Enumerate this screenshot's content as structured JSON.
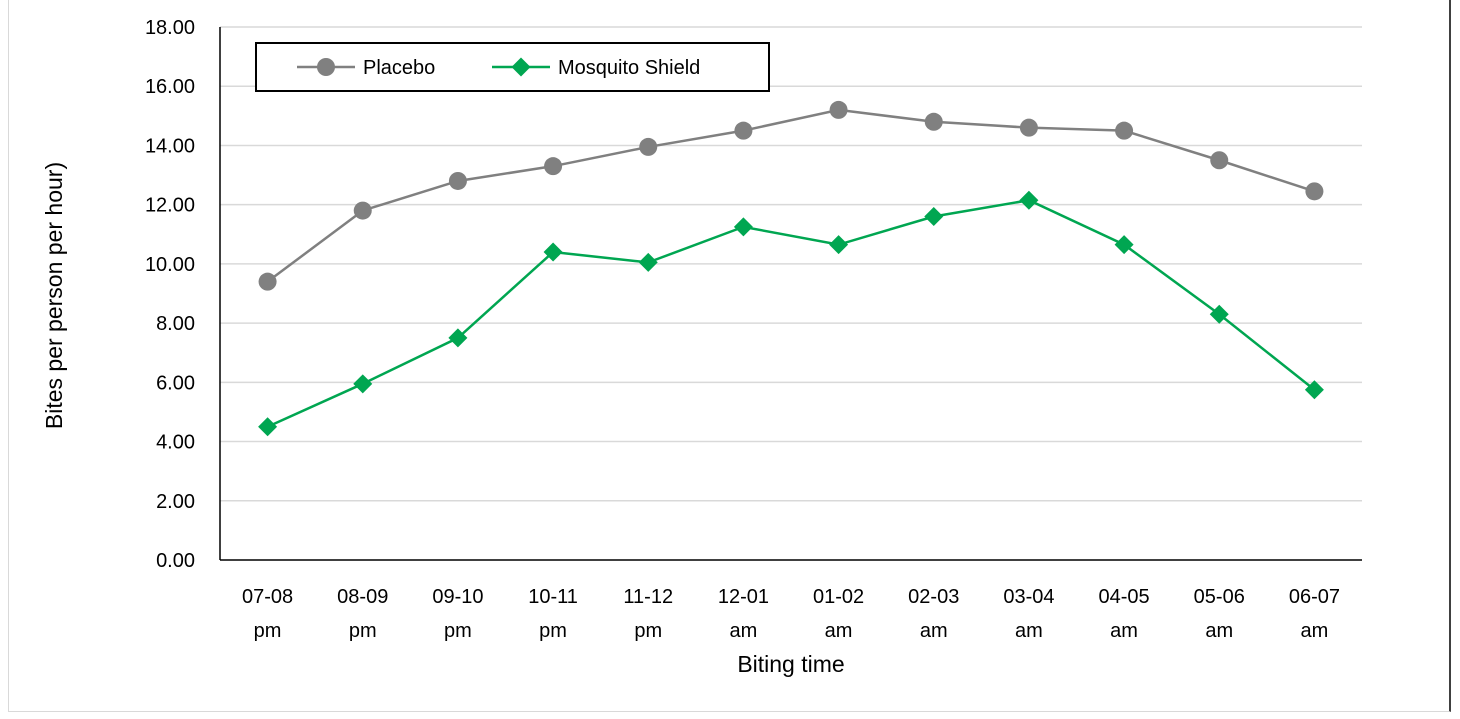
{
  "chart_data": {
    "type": "line",
    "categories": [
      [
        "07-08",
        "pm"
      ],
      [
        "08-09",
        "pm"
      ],
      [
        "09-10",
        "pm"
      ],
      [
        "10-11",
        "pm"
      ],
      [
        "11-12",
        "pm"
      ],
      [
        "12-01",
        "am"
      ],
      [
        "01-02",
        "am"
      ],
      [
        "02-03",
        "am"
      ],
      [
        "03-04",
        "am"
      ],
      [
        "04-05",
        "am"
      ],
      [
        "05-06",
        "am"
      ],
      [
        "06-07",
        "am"
      ]
    ],
    "series": [
      {
        "name": "Placebo",
        "color": "#808080",
        "marker": "circle",
        "values": [
          9.4,
          11.8,
          12.8,
          13.3,
          13.95,
          14.5,
          15.2,
          14.8,
          14.6,
          14.5,
          13.5,
          12.45
        ]
      },
      {
        "name": "Mosquito Shield",
        "color": "#00A651",
        "marker": "diamond",
        "values": [
          4.5,
          5.95,
          7.5,
          10.4,
          10.05,
          11.25,
          10.65,
          11.6,
          12.15,
          10.65,
          8.3,
          5.75
        ]
      }
    ],
    "xlabel": "Biting time",
    "ylabel": "Bites per person per hour)",
    "ylim": [
      0,
      18
    ],
    "yticks": [
      "0.00",
      "2.00",
      "4.00",
      "6.00",
      "8.00",
      "10.00",
      "12.00",
      "14.00",
      "16.00",
      "18.00"
    ],
    "grid": "horizontal",
    "legend_position": "top-left"
  }
}
